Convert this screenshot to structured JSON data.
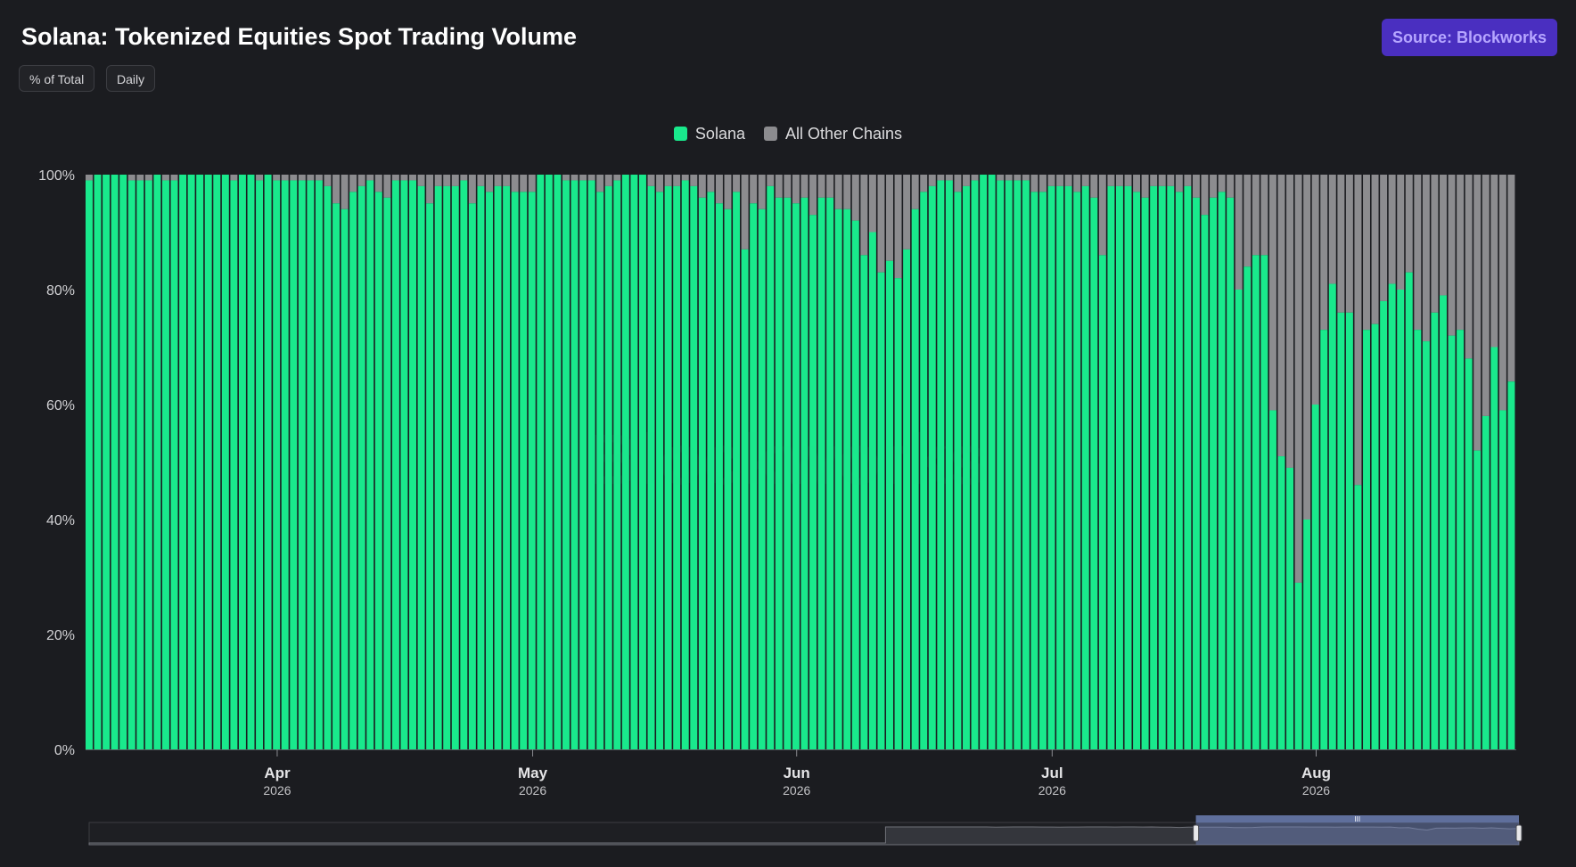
{
  "header": {
    "title": "Solana: Tokenized Equities Spot Trading Volume",
    "pill_percent": "% of Total",
    "pill_daily": "Daily",
    "source_button": "Source: Blockworks"
  },
  "watermark": "Blockworks",
  "colors": {
    "solana": "#19e98c",
    "other": "#8c8c8f",
    "background": "#1b1c20",
    "source_button_bg": "#4a2fc0",
    "source_button_text": "#b6a6ff"
  },
  "chart_data": {
    "type": "bar",
    "stacked": true,
    "normalized": true,
    "title": "Solana: Tokenized Equities Spot Trading Volume",
    "legend_position": "top-center",
    "grid": false,
    "x_start_date": "2026-03-10",
    "x_end_date": "2026-08-26",
    "ylim": [
      0,
      100
    ],
    "y_ticks": [
      "0%",
      "20%",
      "40%",
      "60%",
      "80%",
      "100%"
    ],
    "x_ticks": [
      {
        "date": "2026-04-01",
        "month": "Apr",
        "year": "2026"
      },
      {
        "date": "2026-05-01",
        "month": "May",
        "year": "2026"
      },
      {
        "date": "2026-06-01",
        "month": "Jun",
        "year": "2026"
      },
      {
        "date": "2026-07-01",
        "month": "Jul",
        "year": "2026"
      },
      {
        "date": "2026-08-01",
        "month": "Aug",
        "year": "2026"
      }
    ],
    "series": [
      {
        "name": "Solana",
        "color": "#19e98c",
        "values": [
          99,
          100,
          100,
          100,
          100,
          99,
          99,
          99,
          100,
          99,
          99,
          100,
          100,
          100,
          100,
          100,
          100,
          99,
          100,
          100,
          99,
          100,
          99,
          99,
          99,
          99,
          99,
          99,
          98,
          95,
          94,
          97,
          98,
          99,
          97,
          96,
          99,
          99,
          99,
          98,
          95,
          98,
          98,
          98,
          99,
          95,
          98,
          97,
          98,
          98,
          97,
          97,
          97,
          100,
          100,
          100,
          99,
          99,
          99,
          99,
          97,
          98,
          99,
          100,
          100,
          100,
          98,
          97,
          98,
          98,
          99,
          98,
          96,
          97,
          95,
          94,
          97,
          87,
          95,
          94,
          98,
          96,
          96,
          95,
          96,
          93,
          96,
          96,
          94,
          94,
          92,
          86,
          90,
          83,
          85,
          82,
          87,
          94,
          97,
          98,
          99,
          99,
          97,
          98,
          99,
          100,
          100,
          99,
          99,
          99,
          99,
          97,
          97,
          98,
          98,
          98,
          97,
          98,
          96,
          86,
          98,
          98,
          98,
          97,
          96,
          98,
          98,
          98,
          97,
          98,
          96,
          93,
          96,
          97,
          96,
          80,
          84,
          86,
          86,
          59,
          51,
          49,
          29,
          40,
          60,
          73,
          81,
          76,
          76,
          46,
          73,
          74,
          78,
          81,
          80,
          83,
          73,
          71,
          76,
          79,
          72,
          73,
          68,
          52,
          58,
          70,
          59,
          64
        ]
      },
      {
        "name": "All Other Chains",
        "color": "#8c8c8f",
        "values": [
          1,
          0,
          0,
          0,
          0,
          1,
          1,
          1,
          0,
          1,
          1,
          0,
          0,
          0,
          0,
          0,
          0,
          1,
          0,
          0,
          1,
          0,
          1,
          1,
          1,
          1,
          1,
          1,
          2,
          5,
          6,
          3,
          2,
          1,
          3,
          4,
          1,
          1,
          1,
          2,
          5,
          2,
          2,
          2,
          1,
          5,
          2,
          3,
          2,
          2,
          3,
          3,
          3,
          0,
          0,
          0,
          1,
          1,
          1,
          1,
          3,
          2,
          1,
          0,
          0,
          0,
          2,
          3,
          2,
          2,
          1,
          2,
          4,
          3,
          5,
          6,
          3,
          13,
          5,
          6,
          2,
          4,
          4,
          5,
          4,
          7,
          4,
          4,
          6,
          6,
          8,
          14,
          10,
          17,
          15,
          18,
          13,
          6,
          3,
          2,
          1,
          1,
          3,
          2,
          1,
          0,
          0,
          1,
          1,
          1,
          1,
          3,
          3,
          2,
          2,
          2,
          3,
          2,
          4,
          14,
          2,
          2,
          2,
          3,
          4,
          2,
          2,
          2,
          3,
          2,
          4,
          7,
          4,
          3,
          4,
          20,
          16,
          14,
          14,
          41,
          49,
          51,
          71,
          60,
          40,
          27,
          19,
          24,
          24,
          54,
          27,
          26,
          22,
          19,
          20,
          17,
          27,
          29,
          24,
          21,
          28,
          27,
          32,
          48,
          42,
          30,
          41,
          36
        ]
      }
    ]
  },
  "navigator": {
    "selection_start_date": "2026-03-10",
    "selection_end_date": "2026-08-26",
    "handle_grip": "III"
  }
}
